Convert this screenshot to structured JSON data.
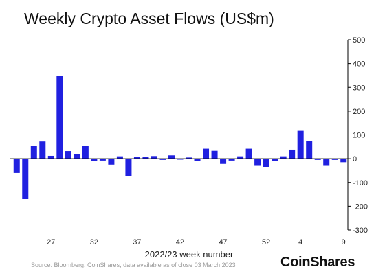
{
  "title": "Weekly Crypto Asset Flows (US$m)",
  "source": "Source: Bloomberg, CoinShares, data available as of close 03 March 2023",
  "logo": "CoinShares",
  "colors": {
    "bar": "#2020e0",
    "axis": "#000000"
  },
  "chart_data": {
    "type": "bar",
    "title": "Weekly Crypto Asset Flows (US$m)",
    "xlabel": "2022/23 week number",
    "ylabel": "",
    "ylim": [
      -300,
      500
    ],
    "yticks": [
      -300,
      -200,
      -100,
      0,
      100,
      200,
      300,
      400,
      500
    ],
    "x_tick_labels": [
      {
        "week": 27,
        "label": "27"
      },
      {
        "week": 32,
        "label": "32"
      },
      {
        "week": 37,
        "label": "37"
      },
      {
        "week": 42,
        "label": "42"
      },
      {
        "week": 47,
        "label": "47"
      },
      {
        "week": 52,
        "label": "52"
      },
      {
        "week": 4,
        "label": "4"
      },
      {
        "week": 9,
        "label": "9"
      }
    ],
    "categories": [
      23,
      24,
      25,
      26,
      27,
      28,
      29,
      30,
      31,
      32,
      33,
      34,
      35,
      36,
      37,
      38,
      39,
      40,
      41,
      42,
      43,
      44,
      45,
      46,
      47,
      48,
      49,
      50,
      51,
      52,
      1,
      2,
      3,
      4,
      5,
      6,
      7,
      8,
      9
    ],
    "values": [
      -60,
      -170,
      55,
      72,
      12,
      348,
      32,
      18,
      55,
      -10,
      -8,
      -25,
      10,
      -72,
      8,
      9,
      11,
      -5,
      14,
      -4,
      5,
      -10,
      42,
      33,
      -22,
      -8,
      10,
      42,
      -30,
      -35,
      -10,
      10,
      38,
      117,
      75,
      -5,
      -30,
      -5,
      -15
    ],
    "grid": false,
    "legend": "none"
  }
}
